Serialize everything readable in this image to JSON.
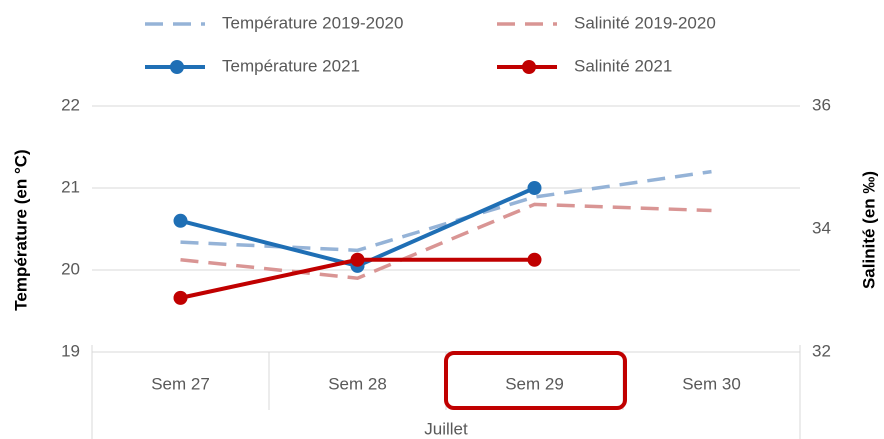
{
  "chart_data": {
    "type": "line",
    "categories": [
      "Sem 27",
      "Sem 28",
      "Sem 29",
      "Sem 30"
    ],
    "category_group": "Juillet",
    "y_label": "Température (en °C)",
    "y2_label": "Salinité (en ‰)",
    "ylim": [
      19,
      22
    ],
    "yticks": [
      19,
      20,
      21,
      22
    ],
    "y2lim": [
      32,
      36
    ],
    "y2ticks": [
      32,
      34,
      36
    ],
    "grid": true,
    "legend": "top",
    "series": [
      {
        "name": "Température 2019-2020",
        "color": "#95b3d7",
        "dashed": true,
        "markers": false,
        "values": [
          20.34,
          20.24,
          20.89,
          21.2
        ]
      },
      {
        "name": "Salinité 2019-2020",
        "color": "#d99594",
        "dashed": true,
        "markers": false,
        "axis": "y2",
        "values": [
          33.5,
          33.2,
          34.4,
          34.3
        ]
      },
      {
        "name": "Température 2021",
        "color": "#1f6fb5",
        "dashed": false,
        "markers": true,
        "values": [
          20.6,
          20.05,
          21.0,
          null
        ]
      },
      {
        "name": "Salinité 2021",
        "color": "#c00000",
        "dashed": false,
        "markers": true,
        "axis": "y2",
        "values": [
          32.88,
          33.5,
          33.5,
          null
        ]
      }
    ]
  }
}
